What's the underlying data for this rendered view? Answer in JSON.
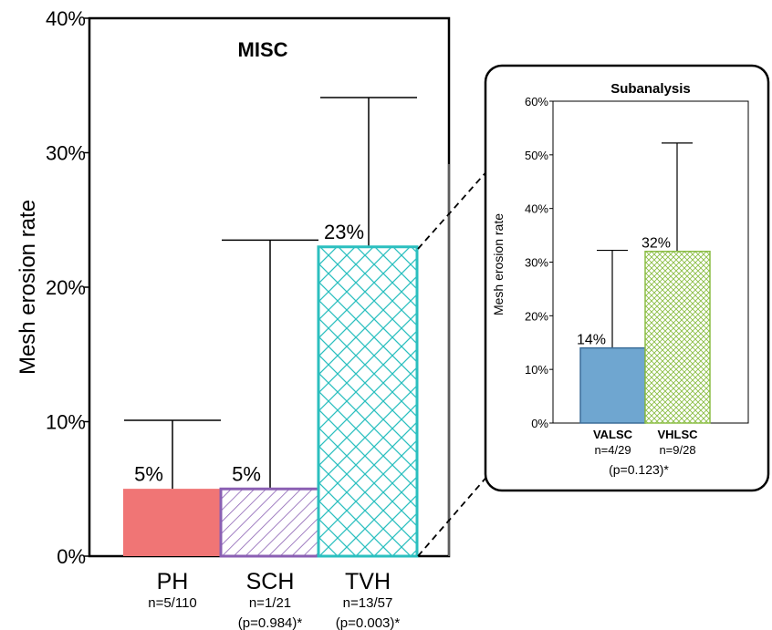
{
  "chart_data": [
    {
      "type": "bar",
      "title": "MISC",
      "ylabel": "Mesh erosion rate",
      "ylim": [
        0,
        40
      ],
      "yticks": [
        "0%",
        "10%",
        "20%",
        "30%",
        "40%"
      ],
      "categories": [
        "PH",
        "SCH",
        "TVH"
      ],
      "values": [
        5,
        5,
        23
      ],
      "error_upper": [
        10.1,
        23.5,
        34.1
      ],
      "value_labels": [
        "5%",
        "5%",
        "23%"
      ],
      "counts": [
        "n=5/110",
        "n=1/21",
        "n=13/57"
      ],
      "pvalues": [
        "",
        "(p=0.984)*",
        "(p=0.003)*"
      ],
      "colors": [
        "#f07575",
        "#8a5fb3",
        "#2bbfbf"
      ],
      "patterns": [
        "solid",
        "diagonal",
        "crosshatch"
      ]
    },
    {
      "type": "bar",
      "title": "Subanalysis",
      "ylabel": "Mesh erosion rate",
      "ylim": [
        0,
        60
      ],
      "yticks": [
        "0%",
        "10%",
        "20%",
        "30%",
        "40%",
        "50%",
        "60%"
      ],
      "categories": [
        "VALSC",
        "VHLSC"
      ],
      "values": [
        14,
        32
      ],
      "error_upper": [
        32.2,
        52.2
      ],
      "value_labels": [
        "14%",
        "32%"
      ],
      "counts": [
        "n=4/29",
        "n=9/28"
      ],
      "pvalue": "(p=0.123)*",
      "colors": [
        "#6fa6d0",
        "#8bbd45"
      ],
      "patterns": [
        "solid",
        "crosshatch-fine"
      ]
    }
  ]
}
